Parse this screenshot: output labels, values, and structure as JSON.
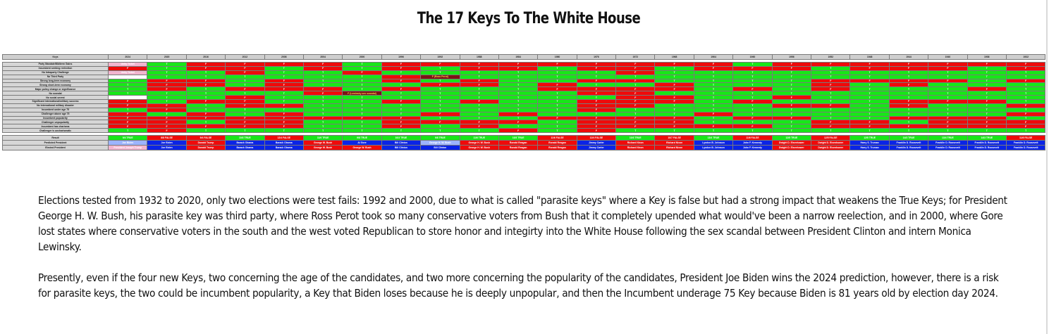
{
  "title": "The 17 Keys To The White House",
  "table": {
    "years": [
      "Keys",
      "2024",
      "2020",
      "2016",
      "2012",
      "2008",
      "2004",
      "2000",
      "1996",
      "1992",
      "1988",
      "1984",
      "1980",
      "1976",
      "1972",
      "1968",
      "1964",
      "1960",
      "1956",
      "1952",
      "1948",
      "1944",
      "1940",
      "1936",
      "1932"
    ],
    "keys": [
      "Party Mandate/Midterm Gains",
      "Incumbent seeking reelection",
      "No Intraparty Challenge",
      "No Third Party",
      "Strong long-term economy",
      "Strong short-term economy",
      "Major policy change or significance",
      "No scandal",
      "No social unrest",
      "Significant international/military success",
      "No international military disaster",
      "Incumbent under age 75",
      "Challenger above age 75",
      "Incumbent popularity",
      "Challenger unpopularity",
      "Incumbent has charisma",
      "Challenger is uncharismatic"
    ],
    "grid": [
      "pgrrrrgrrrrrrrrrgrrrrrrr",
      "rgrrgrgrgrrgrrgrrrgrrrgr",
      "pggrggrggggggrgggggggggg",
      "wggggggrdggggggggggggggg",
      "grrgrggrgrggrrggggrrrrgr",
      "grrgrgggrrgrggrgggrgrggg",
      "grgrrrgrgggrrrrgrgrgggrg",
      "gggggrdgggggrrgggggggggg",
      "wggrgggggggggrrggrgggggg",
      "rgrrgggrgrggrrrgrgggrrrg",
      "rrgrrgggggggrrgggrrgrggr",
      "grggggggggggrggggggggggg",
      "rgrgrgggrgrggggrgggggggr",
      "rrrrrrrrgggrrrrgrrggrrrg",
      "rrgrrggrrrrgrrrgggrrgrrr",
      "rrrrrggrgrggrrrrrgrrrrrr",
      "grggggggggrgrgggggggggg g"
    ],
    "result": [
      "9/4 TRUE",
      "8/8 FALSE",
      "9/4 FALSE",
      "10/3 TRUE",
      "12/4 FALSE",
      "11/6 TRUE",
      "9/8 TRUE",
      "10/3 TRUE",
      "9/8 TRUE",
      "11/6 TRUE",
      "10/3 TRUE",
      "11/6 FALSE",
      "12/4 FALSE",
      "10/3 TRUE",
      "10/7 FALSE",
      "13/4 TRUE",
      "11/6 FALSE",
      "12/5 TRUE",
      "12/5 FALSE",
      "12/5 TRUE",
      "14/3 TRUE",
      "13/4 TRUE",
      "14/3 TRUE",
      "11/6 FALSE"
    ],
    "result_class": "gr rrgrgggggggrrgrgrggrggr",
    "predicted": [
      "Joe Biden",
      "Joe Biden",
      "Donald Trump",
      "Barack Obama",
      "Barack Obama",
      "George W. Bush",
      "Al Gore",
      "Bill Clinton",
      "George H. W. Bush",
      "George H. W. Bush",
      "Ronald Reagan",
      "Ronald Reagan",
      "Jimmy Carter",
      "Richard Nixon",
      "Richard Nixon",
      "Lyndon B. Johnson",
      "John F. Kennedy",
      "Dwight D. Eisenhower",
      "Dwight D. Eisenhower",
      "Harry S. Truman",
      "Franklin D. Roosevelt",
      "Franklin D. Roosevelt",
      "Franklin D. Roosevelt",
      "Franklin D. Roosevelt"
    ],
    "elected": [
      "President Joseph Trump",
      "Joe Biden",
      "Donald Trump",
      "Barack Obama",
      "Barack Obama",
      "George W. Bush",
      "George W. Bush",
      "Bill Clinton",
      "Bill Clinton",
      "George H. W. Bush",
      "Ronald Reagan",
      "Ronald Reagan",
      "Jimmy Carter",
      "Richard Nixon",
      "Richard Nixon",
      "Lyndon B. Johnson",
      "John F. Kennedy",
      "Dwight D. Eisenhower",
      "Dwight D. Eisenhower",
      "Harry S. Truman",
      "Franklin D. Roosevelt",
      "Franklin D. Roosevelt",
      "Franklin D. Roosevelt",
      "Franklin D. Roosevelt"
    ],
    "row_labels": {
      "result": "Result",
      "predicted": "Predicted President",
      "elected": "Elected President"
    },
    "cell_text": {
      "t": "T",
      "f": "F"
    },
    "notes": {
      "perot": "F (Ross Perot)",
      "lewinsky": "F (Lewinsky sex scandal)",
      "incumbent_party": "Unity Ticket",
      "ip_challenge": "Unity Ticket"
    },
    "colors": {
      "true": "#18e618",
      "false": "#ee0a0a",
      "dem": "#0a24e6",
      "rep": "#ee0a0a"
    }
  },
  "paragraphs": [
    "Elections tested from 1932 to 2020, only two elections were test fails: 1992 and 2000, due to what is called \"parasite keys\" where a Key is false but had a strong impact that weakens the True Keys; for President George H. W. Bush, his parasite key was third party, where Ross Perot took so many conservative voters from Bush that it completely upended what would've been a narrow reelection, and in 2000, where Gore lost states where conservative voters in the south and the west voted Republican to store honor and integirty into the White House following the sex scandal between President Clinton and intern Monica Lewinsky.",
    "Presently, even if the four new Keys, two concerning the age of the candidates, and two more concerning the popularity of the candidates, President Joe Biden wins the 2024 prediction, however, there is a risk for parasite keys, the two could be incumbent popularity, a Key that Biden loses because he is deeply unpopular, and then the Incumbent underage 75 Key because Biden is 81 years old by election day 2024."
  ]
}
